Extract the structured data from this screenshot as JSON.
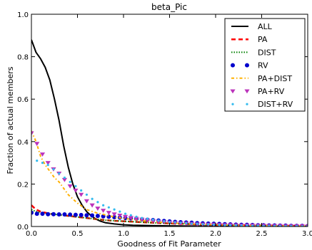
{
  "chart_data": {
    "type": "line",
    "title": "beta_Pic",
    "xlabel": "Goodness of Fit Parameter",
    "ylabel": "Fraction of actual members",
    "xlim": [
      0,
      3.0
    ],
    "ylim": [
      0,
      1.0
    ],
    "xticks": [
      0.0,
      0.5,
      1.0,
      1.5,
      2.0,
      2.5,
      3.0
    ],
    "xtick_labels": [
      "0.0",
      "0.5",
      "1.0",
      "1.5",
      "2.0",
      "2.5",
      "3.0"
    ],
    "yticks": [
      0.0,
      0.2,
      0.4,
      0.6,
      0.8,
      1.0
    ],
    "ytick_labels": [
      "0.0",
      "0.2",
      "0.4",
      "0.6",
      "0.8",
      "1.0"
    ],
    "grid": false,
    "legend_position": "top-right",
    "series": [
      {
        "name": "ALL",
        "style": "solid",
        "color": "#000000",
        "x": [
          0.0,
          0.05,
          0.1,
          0.15,
          0.2,
          0.25,
          0.3,
          0.35,
          0.4,
          0.45,
          0.5,
          0.55,
          0.6,
          0.65,
          0.7,
          0.75,
          0.8,
          0.9,
          1.0,
          1.1,
          1.2,
          1.3,
          1.5,
          1.7,
          2.0,
          2.5,
          3.0
        ],
        "y": [
          0.88,
          0.82,
          0.79,
          0.75,
          0.69,
          0.6,
          0.5,
          0.38,
          0.28,
          0.2,
          0.14,
          0.1,
          0.07,
          0.05,
          0.035,
          0.025,
          0.018,
          0.012,
          0.008,
          0.006,
          0.005,
          0.004,
          0.003,
          0.002,
          0.002,
          0.001,
          0.001
        ]
      },
      {
        "name": "PA",
        "style": "dashed",
        "color": "#ff0000",
        "x": [
          0.0,
          0.05,
          0.1,
          0.15,
          0.2,
          0.3,
          0.4,
          0.5,
          0.6,
          0.7,
          0.8,
          0.9,
          1.0,
          1.2,
          1.4,
          1.6,
          1.8,
          2.0,
          2.2,
          2.4,
          2.6,
          2.8,
          3.0
        ],
        "y": [
          0.1,
          0.08,
          0.07,
          0.065,
          0.06,
          0.055,
          0.05,
          0.045,
          0.04,
          0.035,
          0.03,
          0.027,
          0.025,
          0.02,
          0.016,
          0.013,
          0.01,
          0.008,
          0.006,
          0.005,
          0.004,
          0.003,
          0.002
        ]
      },
      {
        "name": "DIST",
        "style": "dotted",
        "color": "#008000",
        "x": [
          0.0,
          0.05,
          0.1,
          0.2,
          0.3,
          0.4,
          0.5,
          0.6,
          0.7,
          0.8,
          1.0,
          1.2,
          1.4,
          1.6,
          1.8,
          2.0,
          2.2,
          2.4,
          2.6,
          2.8,
          3.0
        ],
        "y": [
          0.08,
          0.07,
          0.065,
          0.06,
          0.055,
          0.05,
          0.045,
          0.04,
          0.035,
          0.03,
          0.025,
          0.02,
          0.016,
          0.013,
          0.01,
          0.008,
          0.006,
          0.005,
          0.004,
          0.003,
          0.002
        ]
      },
      {
        "name": "RV",
        "style": "circle",
        "color": "#0000cc",
        "x": [
          0.0,
          0.06,
          0.12,
          0.18,
          0.24,
          0.3,
          0.36,
          0.42,
          0.48,
          0.54,
          0.6,
          0.66,
          0.72,
          0.78,
          0.84,
          0.9,
          0.96,
          1.02,
          1.08,
          1.14,
          1.2,
          1.26,
          1.32,
          1.38,
          1.44,
          1.5,
          1.56,
          1.62,
          1.68,
          1.74,
          1.8,
          1.86,
          1.92,
          1.98,
          2.04,
          2.1,
          2.16,
          2.22,
          2.28,
          2.34,
          2.4,
          2.46,
          2.52,
          2.58,
          2.64,
          2.7,
          2.76,
          2.82,
          2.88,
          2.94,
          3.0
        ],
        "y": [
          0.065,
          0.06,
          0.06,
          0.058,
          0.058,
          0.057,
          0.057,
          0.056,
          0.055,
          0.054,
          0.053,
          0.052,
          0.05,
          0.048,
          0.046,
          0.044,
          0.042,
          0.04,
          0.038,
          0.036,
          0.034,
          0.032,
          0.03,
          0.028,
          0.026,
          0.024,
          0.022,
          0.02,
          0.019,
          0.018,
          0.016,
          0.015,
          0.014,
          0.013,
          0.012,
          0.011,
          0.01,
          0.009,
          0.008,
          0.008,
          0.007,
          0.006,
          0.006,
          0.005,
          0.005,
          0.004,
          0.004,
          0.003,
          0.003,
          0.003,
          0.002
        ]
      },
      {
        "name": "PA+DIST",
        "style": "dashdot",
        "color": "#ffb000",
        "x": [
          0.0,
          0.05,
          0.1,
          0.15,
          0.2,
          0.25,
          0.3,
          0.35,
          0.4,
          0.45,
          0.5,
          0.6,
          0.7,
          0.8,
          0.9,
          1.0,
          1.2,
          1.4,
          1.6,
          1.8,
          2.0,
          2.2,
          2.4,
          2.6,
          2.8,
          3.0
        ],
        "y": [
          0.45,
          0.4,
          0.33,
          0.29,
          0.26,
          0.23,
          0.21,
          0.18,
          0.15,
          0.13,
          0.11,
          0.08,
          0.065,
          0.055,
          0.045,
          0.038,
          0.028,
          0.02,
          0.015,
          0.011,
          0.008,
          0.006,
          0.005,
          0.004,
          0.003,
          0.002
        ]
      },
      {
        "name": "PA+RV",
        "style": "triangle",
        "color": "#bb33bb",
        "x": [
          0.0,
          0.06,
          0.12,
          0.18,
          0.24,
          0.3,
          0.36,
          0.42,
          0.48,
          0.54,
          0.6,
          0.66,
          0.72,
          0.78,
          0.84,
          0.9,
          0.96,
          1.02,
          1.08,
          1.14,
          1.2,
          1.26,
          1.32,
          1.38,
          1.44,
          1.5,
          1.56,
          1.62,
          1.68,
          1.74,
          1.8,
          1.86,
          1.92,
          1.98,
          2.04,
          2.1,
          2.16,
          2.22,
          2.28,
          2.34,
          2.4,
          2.46,
          2.52,
          2.58,
          2.64,
          2.7,
          2.76,
          2.82,
          2.88,
          2.94,
          3.0
        ],
        "y": [
          0.44,
          0.39,
          0.34,
          0.3,
          0.27,
          0.25,
          0.22,
          0.19,
          0.17,
          0.15,
          0.12,
          0.1,
          0.085,
          0.075,
          0.065,
          0.058,
          0.052,
          0.046,
          0.041,
          0.037,
          0.033,
          0.029,
          0.026,
          0.023,
          0.021,
          0.019,
          0.017,
          0.015,
          0.014,
          0.013,
          0.011,
          0.01,
          0.009,
          0.009,
          0.008,
          0.007,
          0.007,
          0.006,
          0.005,
          0.005,
          0.005,
          0.004,
          0.004,
          0.003,
          0.003,
          0.003,
          0.002,
          0.002,
          0.002,
          0.002,
          0.001
        ]
      },
      {
        "name": "DIST+RV",
        "style": "star",
        "color": "#33bbee",
        "x": [
          0.06,
          0.12,
          0.18,
          0.24,
          0.3,
          0.36,
          0.42,
          0.48,
          0.54,
          0.6,
          0.66,
          0.72,
          0.78,
          0.84,
          0.9,
          0.96,
          1.02,
          1.08,
          1.14,
          1.2,
          1.26,
          1.32,
          1.38,
          1.44,
          1.5,
          1.56,
          1.62,
          1.68,
          1.74,
          1.8,
          1.86,
          1.92,
          1.98,
          2.04,
          2.1,
          2.16,
          2.22,
          2.28,
          2.34,
          2.4,
          2.46,
          2.52,
          2.58,
          2.64,
          2.7,
          2.76,
          2.82,
          2.88,
          2.94,
          3.0
        ],
        "y": [
          0.31,
          0.3,
          0.29,
          0.27,
          0.25,
          0.23,
          0.21,
          0.19,
          0.17,
          0.15,
          0.13,
          0.115,
          0.1,
          0.09,
          0.08,
          0.07,
          0.06,
          0.053,
          0.046,
          0.04,
          0.036,
          0.032,
          0.028,
          0.025,
          0.022,
          0.02,
          0.018,
          0.016,
          0.014,
          0.013,
          0.011,
          0.01,
          0.009,
          0.008,
          0.007,
          0.006,
          0.006,
          0.005,
          0.005,
          0.004,
          0.004,
          0.003,
          0.003,
          0.003,
          0.002,
          0.002,
          0.002,
          0.002,
          0.001,
          0.001
        ]
      }
    ]
  }
}
